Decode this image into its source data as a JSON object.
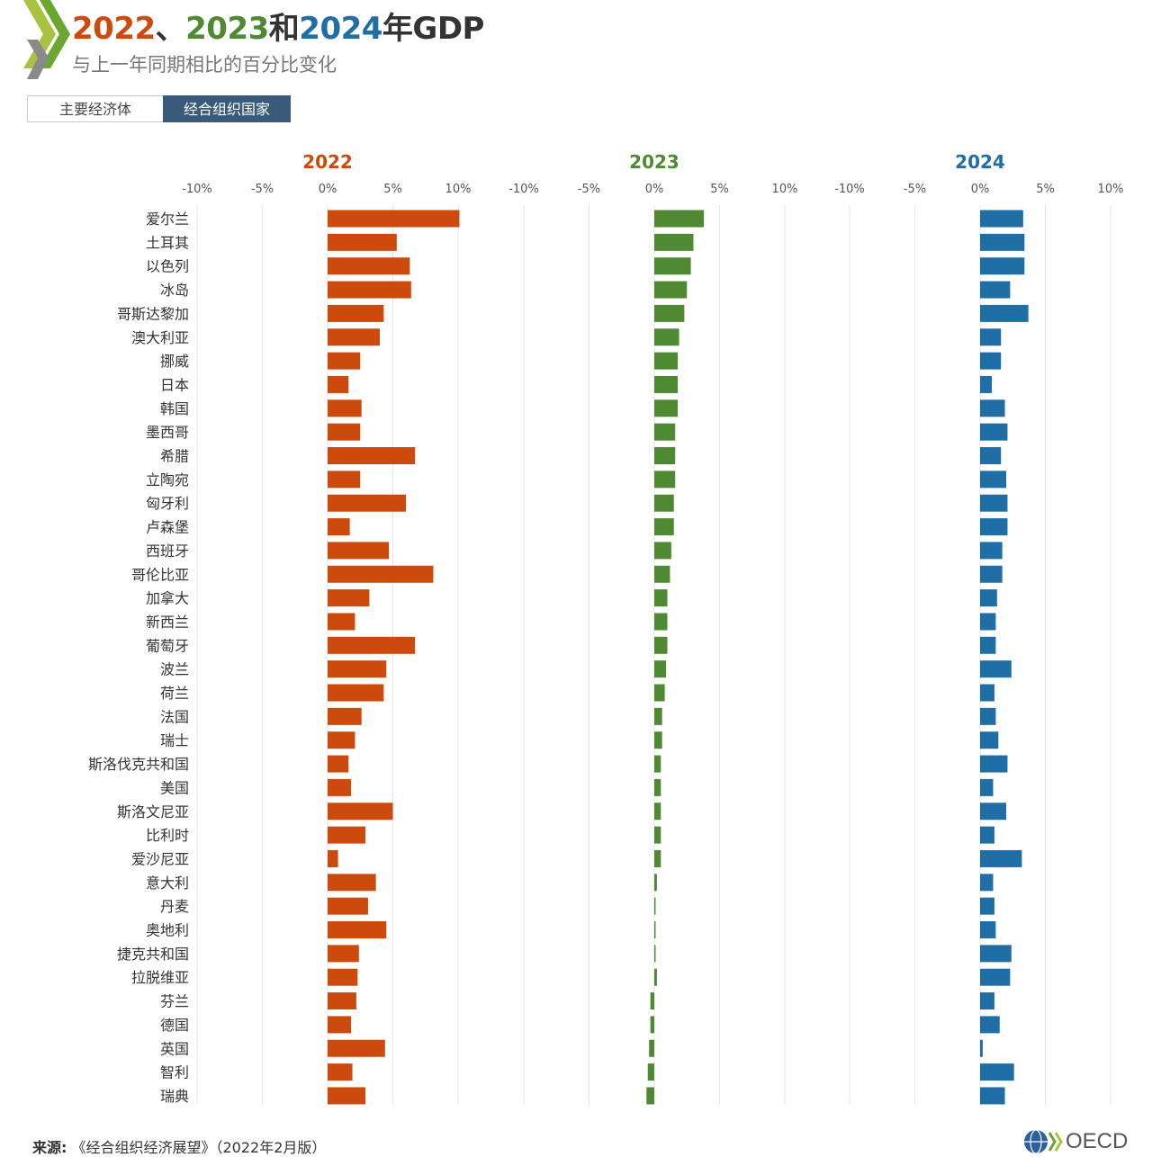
{
  "header": {
    "title_parts": [
      "2022",
      "、",
      "2023",
      "和",
      "2024",
      "年GDP"
    ],
    "subtitle": "与上一年同期相比的百分比变化"
  },
  "tabs": [
    {
      "label": "主要经济体",
      "active": false
    },
    {
      "label": "经合组织国家",
      "active": true
    }
  ],
  "footer": {
    "source_label": "来源:",
    "source_text": "《经合组织经济展望》（2022年2月版）",
    "brand": "OECD"
  },
  "colors": {
    "y2022": "#cc4b0c",
    "y2023": "#4f8a33",
    "y2024": "#1f6fa6"
  },
  "icons": [
    "oecd-chevron-logo-icon",
    "oecd-globe-icon"
  ],
  "chart_data": {
    "type": "bar",
    "orientation": "horizontal",
    "categories": [
      "爱尔兰",
      "土耳其",
      "以色列",
      "冰岛",
      "哥斯达黎加",
      "澳大利亚",
      "挪威",
      "日本",
      "韩国",
      "墨西哥",
      "希腊",
      "立陶宛",
      "匈牙利",
      "卢森堡",
      "西班牙",
      "哥伦比亚",
      "加拿大",
      "新西兰",
      "葡萄牙",
      "波兰",
      "荷兰",
      "法国",
      "瑞士",
      "斯洛伐克共和国",
      "美国",
      "斯洛文尼亚",
      "比利时",
      "爱沙尼亚",
      "意大利",
      "丹麦",
      "奥地利",
      "捷克共和国",
      "拉脱维亚",
      "芬兰",
      "德国",
      "英国",
      "智利",
      "瑞典"
    ],
    "series": [
      {
        "name": "2022",
        "values": [
          10.1,
          5.3,
          6.3,
          6.4,
          4.3,
          4.0,
          2.5,
          1.6,
          2.6,
          2.5,
          6.7,
          2.5,
          6.0,
          1.7,
          4.7,
          8.1,
          3.2,
          2.1,
          6.7,
          4.5,
          4.3,
          2.6,
          2.1,
          1.6,
          1.8,
          5.0,
          2.9,
          0.8,
          3.7,
          3.1,
          4.5,
          2.4,
          2.3,
          2.2,
          1.8,
          4.4,
          1.9,
          2.9
        ]
      },
      {
        "name": "2023",
        "values": [
          3.8,
          3.0,
          2.8,
          2.5,
          2.3,
          1.9,
          1.8,
          1.8,
          1.8,
          1.6,
          1.6,
          1.6,
          1.5,
          1.5,
          1.3,
          1.2,
          1.0,
          1.0,
          1.0,
          0.9,
          0.8,
          0.6,
          0.6,
          0.5,
          0.5,
          0.5,
          0.5,
          0.5,
          0.2,
          0.1,
          0.1,
          0.1,
          0.2,
          -0.3,
          -0.3,
          -0.4,
          -0.5,
          -0.6
        ]
      },
      {
        "name": "2024",
        "values": [
          3.3,
          3.4,
          3.4,
          2.3,
          3.7,
          1.6,
          1.6,
          0.9,
          1.9,
          2.1,
          1.6,
          2.0,
          2.1,
          2.1,
          1.7,
          1.7,
          1.3,
          1.2,
          1.2,
          2.4,
          1.1,
          1.2,
          1.4,
          2.1,
          1.0,
          2.0,
          1.1,
          3.2,
          1.0,
          1.1,
          1.2,
          2.4,
          2.3,
          1.1,
          1.5,
          0.2,
          2.6,
          1.9
        ]
      }
    ],
    "xlim": [
      -10,
      10
    ],
    "ticks": [
      -10,
      -5,
      0,
      5,
      10
    ],
    "tick_labels": [
      "-10%",
      "-5%",
      "0%",
      "5%",
      "10%"
    ],
    "grid": true,
    "unit": "%"
  }
}
